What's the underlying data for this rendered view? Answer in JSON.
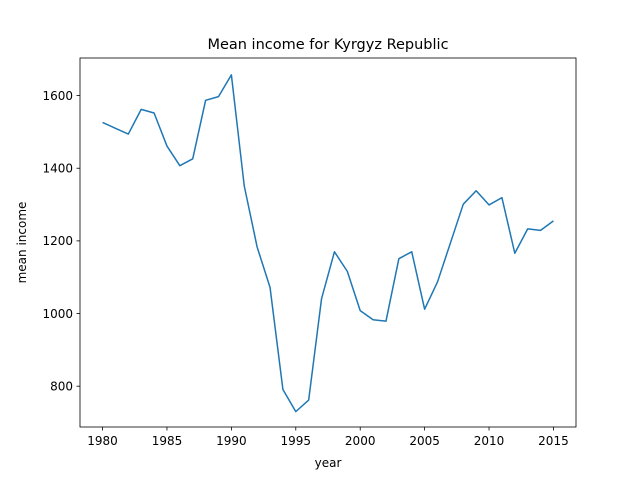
{
  "chart_data": {
    "type": "line",
    "title": "Mean income for Kyrgyz Republic",
    "xlabel": "year",
    "ylabel": "mean income",
    "xlim": [
      1978.25,
      1976.75
    ],
    "ylim": [
      687.7,
      1703.4
    ],
    "grid": false,
    "x_ticks": [
      1980,
      1985,
      1990,
      1995,
      2000,
      2005,
      2010,
      2015
    ],
    "y_ticks": [
      800,
      1000,
      1200,
      1400,
      1600
    ],
    "series": [
      {
        "color": "#1f77b4",
        "points": [
          {
            "x": 1980,
            "y": 1526
          },
          {
            "x": 1981,
            "y": 1510
          },
          {
            "x": 1982,
            "y": 1494
          },
          {
            "x": 1983,
            "y": 1562
          },
          {
            "x": 1984,
            "y": 1552
          },
          {
            "x": 1985,
            "y": 1461
          },
          {
            "x": 1986,
            "y": 1407
          },
          {
            "x": 1987,
            "y": 1426
          },
          {
            "x": 1988,
            "y": 1587
          },
          {
            "x": 1989,
            "y": 1597
          },
          {
            "x": 1990,
            "y": 1657
          },
          {
            "x": 1991,
            "y": 1351
          },
          {
            "x": 1992,
            "y": 1183
          },
          {
            "x": 1993,
            "y": 1072
          },
          {
            "x": 1994,
            "y": 791
          },
          {
            "x": 1995,
            "y": 730
          },
          {
            "x": 1996,
            "y": 762
          },
          {
            "x": 1997,
            "y": 1041
          },
          {
            "x": 1998,
            "y": 1170
          },
          {
            "x": 1999,
            "y": 1116
          },
          {
            "x": 2000,
            "y": 1008
          },
          {
            "x": 2001,
            "y": 983
          },
          {
            "x": 2002,
            "y": 979
          },
          {
            "x": 2003,
            "y": 1151
          },
          {
            "x": 2004,
            "y": 1170
          },
          {
            "x": 2005,
            "y": 1012
          },
          {
            "x": 2006,
            "y": 1087
          },
          {
            "x": 2007,
            "y": 1194
          },
          {
            "x": 2008,
            "y": 1301
          },
          {
            "x": 2009,
            "y": 1338
          },
          {
            "x": 2010,
            "y": 1299
          },
          {
            "x": 2011,
            "y": 1319
          },
          {
            "x": 2012,
            "y": 1166
          },
          {
            "x": 2013,
            "y": 1233
          },
          {
            "x": 2014,
            "y": 1229
          },
          {
            "x": 2015,
            "y": 1255
          }
        ]
      }
    ]
  }
}
